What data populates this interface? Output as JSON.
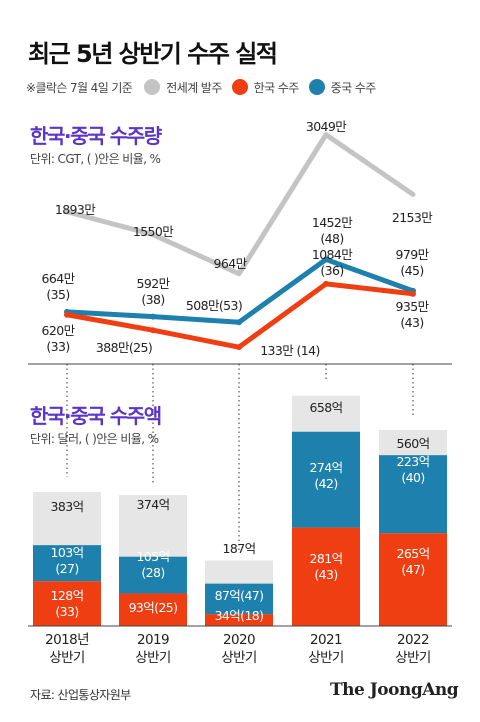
{
  "header": {
    "title": "최근 5년 상반기 수주 실적",
    "note": "※클락슨 7월 4일 기준"
  },
  "legend": [
    {
      "label": "전세계 발주",
      "color": "#c4c4c4"
    },
    {
      "label": "한국 수주",
      "color": "#ef3e12"
    },
    {
      "label": "중국 수주",
      "color": "#1d80ad"
    }
  ],
  "section_volume": {
    "title": "한국·중국 수주량",
    "unit": "단위: CGT, ( )안은 비율, %"
  },
  "section_value": {
    "title": "한국·중국 수주액",
    "unit": "단위: 달러, ( )안은 비율, %"
  },
  "footer": {
    "source": "자료: 산업통상자원부",
    "brand": "The JoongAng"
  },
  "chart_data": [
    {
      "type": "line",
      "title": "한국·중국 수주량",
      "unit": "단위: CGT, ( )안은 비율, %",
      "categories": [
        "2018년 상반기",
        "2019 상반기",
        "2020 상반기",
        "2021 상반기",
        "2022 상반기"
      ],
      "series": [
        {
          "name": "전세계 발주",
          "color": "#c4c4c4",
          "values": [
            1893,
            1550,
            964,
            3049,
            2153
          ],
          "labels": [
            "1893만",
            "1550만",
            "964만",
            "3049만",
            "2153만"
          ]
        },
        {
          "name": "중국 수주",
          "color": "#1d80ad",
          "values": [
            664,
            592,
            508,
            1452,
            979
          ],
          "labels": [
            "664만\n(35)",
            "592만\n(38)",
            "508만(53)",
            "1452만\n(48)",
            "979만\n(45)"
          ]
        },
        {
          "name": "한국 수주",
          "color": "#ef3e12",
          "values": [
            620,
            388,
            133,
            1084,
            935
          ],
          "labels": [
            "620만\n(33)",
            "388만(25)",
            "133만 (14)",
            "1084만\n(36)",
            "935만\n(43)"
          ]
        }
      ]
    },
    {
      "type": "bar",
      "title": "한국·중국 수주액",
      "unit": "단위: 달러, ( )안은 비율, %",
      "categories": [
        "2018년 상반기",
        "2019 상반기",
        "2020 상반기",
        "2021 상반기",
        "2022 상반기"
      ],
      "series": [
        {
          "name": "전세계 발주",
          "color": "#e6e6e6",
          "values": [
            383,
            374,
            187,
            658,
            560
          ],
          "labels": [
            "383억",
            "374억",
            "187억",
            "658억",
            "560억"
          ]
        },
        {
          "name": "중국 수주",
          "color": "#1d80ad",
          "values": [
            103,
            105,
            87,
            274,
            223
          ],
          "labels": [
            "103억\n(27)",
            "105억\n(28)",
            "87억(47)",
            "274억\n(42)",
            "223억\n(40)"
          ]
        },
        {
          "name": "한국 수주",
          "color": "#ef3e12",
          "values": [
            128,
            93,
            34,
            281,
            265
          ],
          "labels": [
            "128억\n(33)",
            "93억(25)",
            "34억(18)",
            "281억\n(43)",
            "265억\n(47)"
          ]
        }
      ]
    }
  ]
}
